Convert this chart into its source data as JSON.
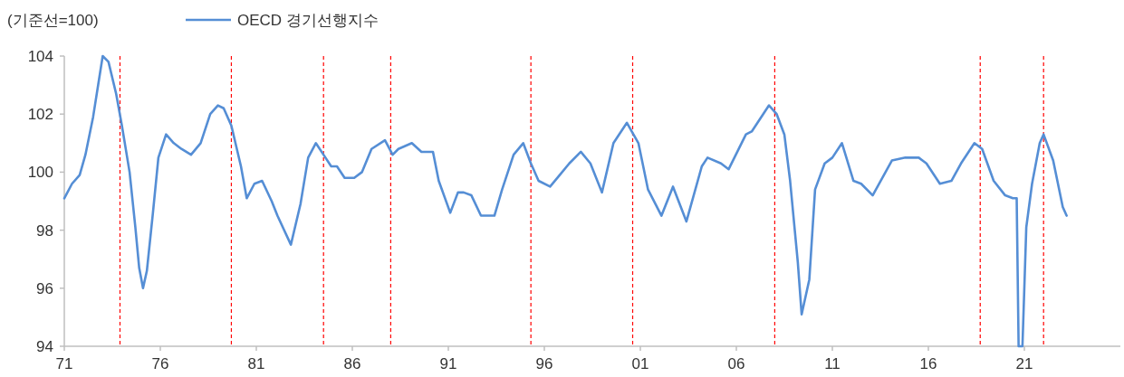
{
  "chart_data": {
    "type": "line",
    "ylabel": "(기준선=100)",
    "legend": "top",
    "grid": false,
    "line_style": "solid",
    "marker": "none",
    "xlim": [
      1971,
      2026
    ],
    "ylim": [
      94,
      104
    ],
    "xticks": [
      {
        "value": 1971,
        "label": "71"
      },
      {
        "value": 1976,
        "label": "76"
      },
      {
        "value": 1981,
        "label": "81"
      },
      {
        "value": 1986,
        "label": "86"
      },
      {
        "value": 1991,
        "label": "91"
      },
      {
        "value": 1996,
        "label": "96"
      },
      {
        "value": 2001,
        "label": "01"
      },
      {
        "value": 2006,
        "label": "06"
      },
      {
        "value": 2011,
        "label": "11"
      },
      {
        "value": 2016,
        "label": "16"
      },
      {
        "value": 2021,
        "label": "21"
      }
    ],
    "yticks": [
      94,
      96,
      98,
      100,
      102,
      104
    ],
    "x": [
      1971.0,
      1971.4,
      1971.8,
      1972.1,
      1972.5,
      1973.0,
      1973.3,
      1973.7,
      1974.0,
      1974.4,
      1974.7,
      1974.9,
      1975.1,
      1975.3,
      1975.6,
      1975.9,
      1976.3,
      1976.7,
      1977.1,
      1977.6,
      1978.1,
      1978.6,
      1979.0,
      1979.3,
      1979.7,
      1980.2,
      1980.5,
      1980.9,
      1981.3,
      1981.8,
      1982.1,
      1982.8,
      1983.3,
      1983.7,
      1984.1,
      1984.5,
      1984.9,
      1985.2,
      1985.6,
      1986.1,
      1986.5,
      1987.0,
      1987.7,
      1988.1,
      1988.4,
      1989.1,
      1989.6,
      1990.2,
      1990.5,
      1991.1,
      1991.5,
      1991.8,
      1992.2,
      1992.7,
      1993.4,
      1993.8,
      1994.4,
      1994.9,
      1995.3,
      1995.7,
      1996.3,
      1996.8,
      1997.3,
      1997.9,
      1998.4,
      1999.0,
      1999.6,
      2000.3,
      2000.9,
      2001.4,
      2002.1,
      2002.7,
      2003.4,
      2004.2,
      2004.5,
      2005.2,
      2005.6,
      2006.5,
      2006.8,
      2007.7,
      2008.1,
      2008.5,
      2008.8,
      2009.2,
      2009.4,
      2009.8,
      2010.1,
      2010.6,
      2011.0,
      2011.5,
      2012.1,
      2012.5,
      2013.1,
      2014.1,
      2014.8,
      2015.5,
      2015.9,
      2016.6,
      2017.2,
      2017.7,
      2018.4,
      2018.8,
      2019.4,
      2020.0,
      2020.4,
      2020.6,
      2020.7,
      2020.9,
      2021.1,
      2021.4,
      2021.8,
      2022.0,
      2022.5,
      2023.0,
      2023.2
    ],
    "series": [
      {
        "name": "OECD 경기선행지수",
        "color": "#558ed5",
        "values": [
          99.1,
          99.6,
          99.9,
          100.6,
          101.9,
          104.0,
          103.8,
          102.7,
          101.6,
          100.0,
          98.1,
          96.7,
          96.0,
          96.6,
          98.5,
          100.5,
          101.3,
          101.0,
          100.8,
          100.6,
          101.0,
          102.0,
          102.3,
          102.2,
          101.6,
          100.2,
          99.1,
          99.6,
          99.7,
          99.0,
          98.5,
          97.5,
          98.9,
          100.5,
          101.0,
          100.6,
          100.2,
          100.2,
          99.8,
          99.8,
          100.0,
          100.8,
          101.1,
          100.6,
          100.8,
          101.0,
          100.7,
          100.7,
          99.7,
          98.6,
          99.3,
          99.3,
          99.2,
          98.5,
          98.5,
          99.4,
          100.6,
          101.0,
          100.3,
          99.7,
          99.5,
          99.9,
          100.3,
          100.7,
          100.3,
          99.3,
          101.0,
          101.7,
          101.0,
          99.4,
          98.5,
          99.5,
          98.3,
          100.2,
          100.5,
          100.3,
          100.1,
          101.3,
          101.4,
          102.3,
          102.0,
          101.3,
          99.7,
          96.9,
          95.1,
          96.3,
          99.4,
          100.3,
          100.5,
          101.0,
          99.7,
          99.6,
          99.2,
          100.4,
          100.5,
          100.5,
          100.3,
          99.6,
          99.7,
          100.3,
          101.0,
          100.8,
          99.7,
          99.2,
          99.1,
          99.1,
          94.0,
          94.0,
          98.1,
          99.6,
          101.0,
          101.3,
          100.4,
          98.8,
          98.5
        ]
      }
    ],
    "ref_lines": [
      {
        "axis": "x",
        "value": 1973.9,
        "color": "#ff0000",
        "line_style": "dashed"
      },
      {
        "axis": "x",
        "value": 1979.7,
        "color": "#ff0000",
        "line_style": "dashed"
      },
      {
        "axis": "x",
        "value": 1984.5,
        "color": "#ff0000",
        "line_style": "dashed"
      },
      {
        "axis": "x",
        "value": 1988.0,
        "color": "#ff0000",
        "line_style": "dashed"
      },
      {
        "axis": "x",
        "value": 1995.3,
        "color": "#ff0000",
        "line_style": "dashed"
      },
      {
        "axis": "x",
        "value": 2000.6,
        "color": "#ff0000",
        "line_style": "dashed"
      },
      {
        "axis": "x",
        "value": 2008.0,
        "color": "#ff0000",
        "line_style": "dashed"
      },
      {
        "axis": "x",
        "value": 2018.7,
        "color": "#ff0000",
        "line_style": "dashed"
      },
      {
        "axis": "x",
        "value": 2022.0,
        "color": "#ff0000",
        "line_style": "dashed"
      }
    ]
  }
}
